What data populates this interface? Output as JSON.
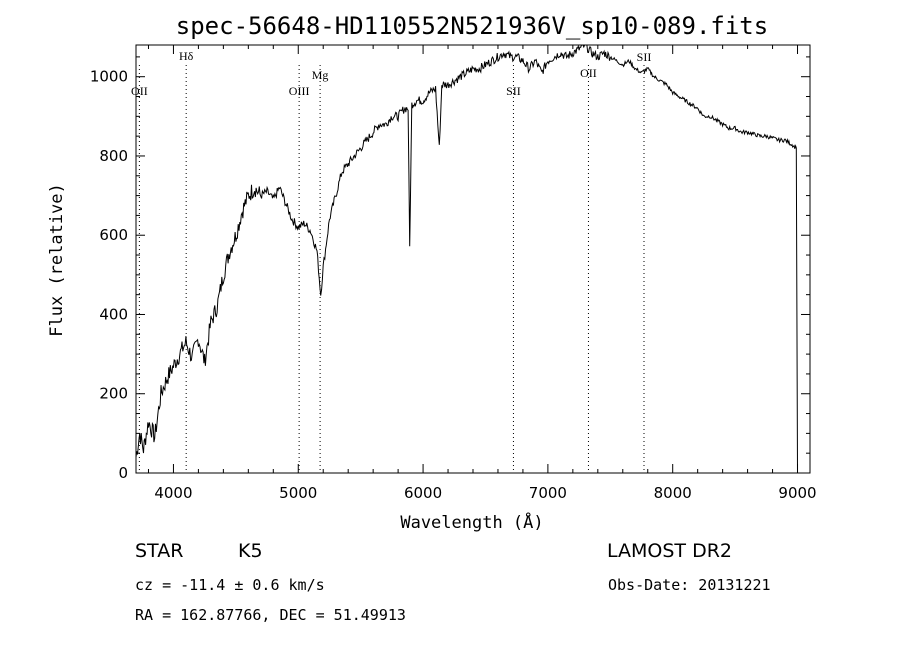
{
  "chart_data": {
    "type": "line",
    "title": "spec-56648-HD110552N521936V_sp10-089.fits",
    "xlabel": "Wavelength (Å)",
    "ylabel": "Flux (relative)",
    "xlim": [
      3700,
      9100
    ],
    "ylim": [
      0,
      1080
    ],
    "xticks": [
      4000,
      5000,
      6000,
      7000,
      8000,
      9000
    ],
    "yticks": [
      0,
      200,
      400,
      600,
      800,
      1000
    ],
    "grid": false,
    "series": [
      {
        "x": [
          3700,
          3730,
          3760,
          3800,
          3850,
          3900,
          3950,
          4000,
          4050,
          4100,
          4150,
          4200,
          4250,
          4300,
          4350,
          4400,
          4450,
          4500,
          4550,
          4600,
          4650,
          4700,
          4750,
          4800,
          4850,
          4900,
          4950,
          5000,
          5050,
          5100,
          5150,
          5180,
          5200,
          5250,
          5300,
          5350,
          5400,
          5450,
          5500,
          5550,
          5600,
          5650,
          5700,
          5750,
          5800,
          5850,
          5880,
          5893,
          5910,
          5950,
          6000,
          6050,
          6100,
          6130,
          6150,
          6200,
          6250,
          6300,
          6350,
          6400,
          6450,
          6500,
          6550,
          6600,
          6650,
          6700,
          6750,
          6800,
          6850,
          6900,
          6950,
          7000,
          7050,
          7100,
          7150,
          7200,
          7250,
          7300,
          7350,
          7400,
          7450,
          7500,
          7550,
          7600,
          7650,
          7700,
          7750,
          7800,
          7850,
          7900,
          7950,
          8000,
          8050,
          8100,
          8150,
          8200,
          8250,
          8300,
          8350,
          8400,
          8450,
          8500,
          8550,
          8600,
          8650,
          8700,
          8750,
          8800,
          8850,
          8900,
          8950,
          8990,
          9000
        ],
        "y": [
          40,
          100,
          60,
          130,
          90,
          200,
          240,
          270,
          300,
          330,
          290,
          340,
          280,
          380,
          420,
          500,
          560,
          600,
          660,
          700,
          720,
          700,
          710,
          690,
          720,
          680,
          640,
          620,
          630,
          610,
          560,
          450,
          520,
          640,
          700,
          760,
          780,
          800,
          820,
          840,
          860,
          880,
          880,
          900,
          900,
          920,
          920,
          570,
          930,
          940,
          940,
          960,
          970,
          820,
          980,
          980,
          990,
          1000,
          1010,
          1020,
          1020,
          1030,
          1040,
          1050,
          1060,
          1050,
          1050,
          1040,
          1020,
          1040,
          1010,
          1040,
          1050,
          1060,
          1050,
          1060,
          1070,
          1080,
          1060,
          1050,
          1060,
          1050,
          1040,
          1030,
          1040,
          1020,
          1010,
          1020,
          1000,
          990,
          980,
          960,
          950,
          940,
          930,
          920,
          900,
          900,
          890,
          880,
          870,
          870,
          860,
          860,
          855,
          850,
          850,
          845,
          840,
          840,
          830,
          820,
          0
        ]
      }
    ],
    "annotations": [
      {
        "label": "OII",
        "x": 3727
      },
      {
        "label": "Hδ",
        "x": 4102
      },
      {
        "label": "OIII",
        "x": 5007
      },
      {
        "label": "Mg",
        "x": 5175
      },
      {
        "label": "SII",
        "x": 6724
      },
      {
        "label": "OII",
        "x": 7325
      },
      {
        "label": "SII",
        "x": 7770
      }
    ]
  },
  "info": {
    "object_type": "STAR",
    "subclass": "K5",
    "survey": "LAMOST DR2",
    "cz": "cz = -11.4 ± 0.6 km/s",
    "obs_date": "Obs-Date: 20131221",
    "coords": "RA = 162.87766, DEC =  51.49913"
  }
}
